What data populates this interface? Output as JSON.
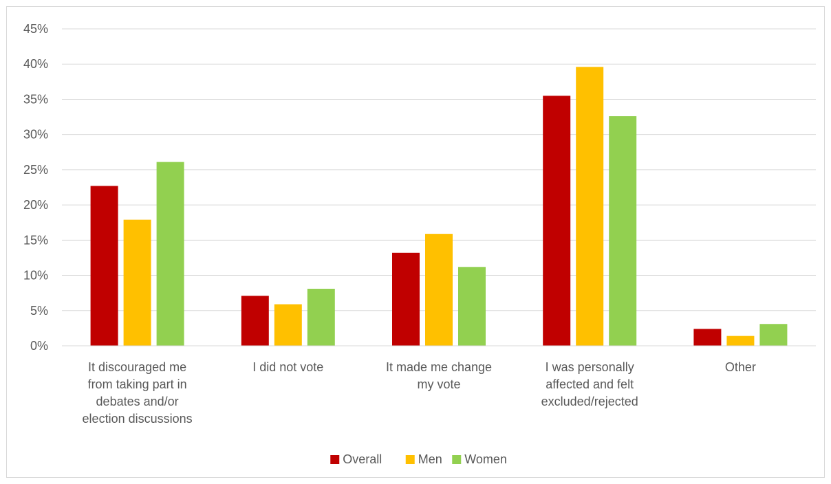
{
  "chart_data": {
    "type": "bar",
    "title": "",
    "xlabel": "",
    "ylabel": "",
    "ylim": [
      0,
      45
    ],
    "y_ticks": [
      "0%",
      "5%",
      "10%",
      "15%",
      "20%",
      "25%",
      "30%",
      "35%",
      "40%",
      "45%"
    ],
    "grid": true,
    "legend_position": "bottom",
    "categories": [
      [
        "It discouraged me",
        "from taking part in",
        "debates and/or",
        "election discussions"
      ],
      [
        "I did not vote"
      ],
      [
        "It made me change",
        "my vote"
      ],
      [
        "I was personally",
        "affected and felt",
        "excluded/rejected"
      ],
      [
        "Other"
      ]
    ],
    "series": [
      {
        "name": "Overall",
        "color": "#c00000",
        "values": [
          22.7,
          7.1,
          13.2,
          35.5,
          2.4
        ]
      },
      {
        "name": "Men",
        "color": "#ffc000",
        "values": [
          17.9,
          5.9,
          15.9,
          39.6,
          1.4
        ]
      },
      {
        "name": "Women",
        "color": "#92d050",
        "values": [
          26.1,
          8.1,
          11.2,
          32.6,
          3.1
        ]
      }
    ]
  }
}
